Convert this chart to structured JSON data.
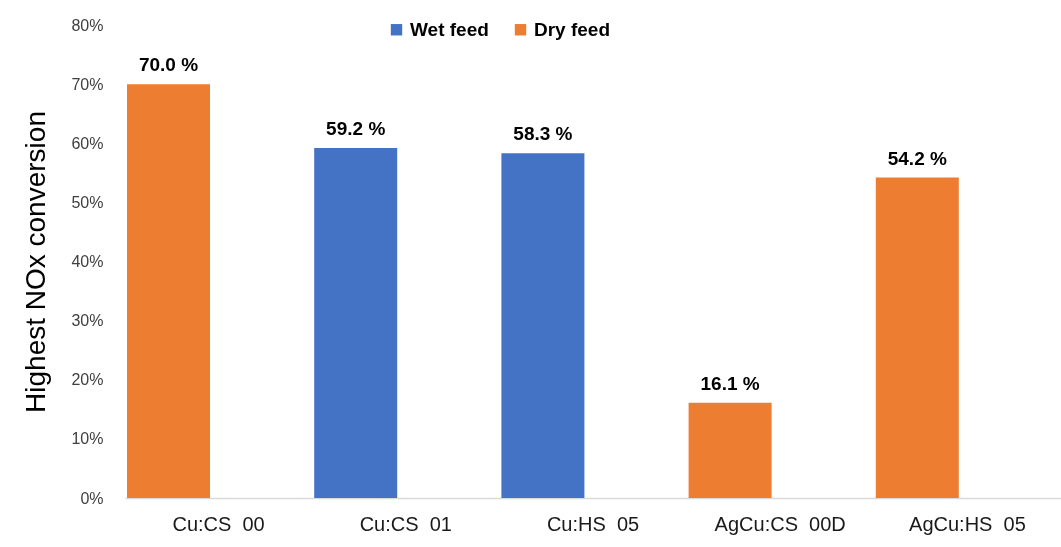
{
  "chart_data": {
    "type": "bar",
    "ylabel": "Highest NOx conversion",
    "categories": [
      "Cu:CS  00",
      "Cu:CS  01",
      "Cu:HS  05",
      "AgCu:CS  00D",
      "AgCu:HS  05"
    ],
    "series": [
      {
        "name": "Wet feed",
        "color": "#4472c4",
        "values": [
          null,
          59.2,
          58.3,
          null,
          null
        ],
        "value_labels": [
          null,
          "59.2 %",
          "58.3 %",
          null,
          null
        ]
      },
      {
        "name": "Dry feed",
        "color": "#ed7d31",
        "values": [
          70.0,
          null,
          null,
          16.1,
          54.2
        ],
        "value_labels": [
          "70.0 %",
          null,
          null,
          "16.1 %",
          "54.2 %"
        ]
      }
    ],
    "ylim": [
      0,
      80
    ],
    "yticks": [
      {
        "value": 0,
        "label": "0%"
      },
      {
        "value": 10,
        "label": "10%"
      },
      {
        "value": 20,
        "label": "20%"
      },
      {
        "value": 30,
        "label": "30%"
      },
      {
        "value": 40,
        "label": "40%"
      },
      {
        "value": 50,
        "label": "50%"
      },
      {
        "value": 60,
        "label": "60%"
      },
      {
        "value": 70,
        "label": "70%"
      },
      {
        "value": 80,
        "label": "80%"
      }
    ],
    "legend": "top",
    "grid": false
  }
}
